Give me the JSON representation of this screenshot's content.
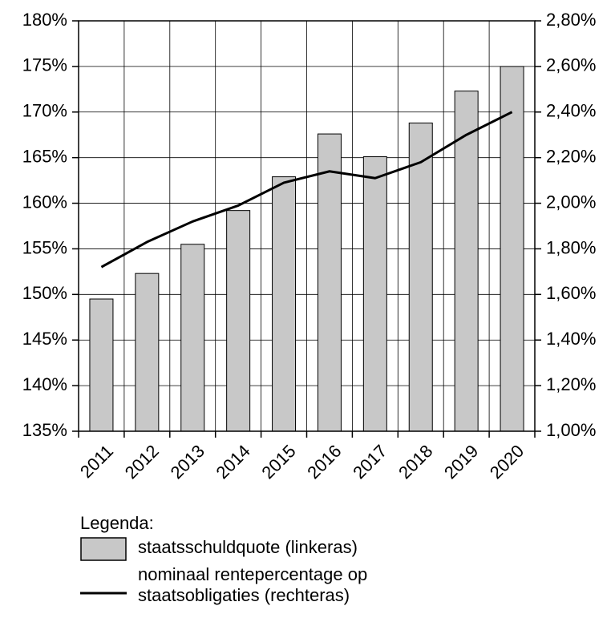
{
  "chart_data": {
    "type": "bar",
    "categories": [
      "2011",
      "2012",
      "2013",
      "2014",
      "2015",
      "2016",
      "2017",
      "2018",
      "2019",
      "2020"
    ],
    "series": [
      {
        "name": "staatsschuldquote (linkeras)",
        "type": "bar",
        "color": "#c8c8c8",
        "values": [
          149.5,
          152.3,
          155.5,
          159.2,
          162.9,
          167.6,
          165.1,
          168.8,
          172.3,
          175.0
        ]
      },
      {
        "name": "nominaal rentepercentage op staatsobligaties (rechteras)",
        "type": "line",
        "axis": "y2",
        "color": "#000000",
        "values": [
          1.72,
          1.83,
          1.92,
          1.99,
          2.09,
          2.14,
          2.11,
          2.18,
          2.3,
          2.4
        ]
      }
    ],
    "ylim": [
      135,
      180
    ],
    "yticks": [
      {
        "value": 135,
        "label": "135%"
      },
      {
        "value": 140,
        "label": "140%"
      },
      {
        "value": 145,
        "label": "145%"
      },
      {
        "value": 150,
        "label": "150%"
      },
      {
        "value": 155,
        "label": "155%"
      },
      {
        "value": 160,
        "label": "160%"
      },
      {
        "value": 165,
        "label": "165%"
      },
      {
        "value": 170,
        "label": "170%"
      },
      {
        "value": 175,
        "label": "175%"
      },
      {
        "value": 180,
        "label": "180%"
      }
    ],
    "y2lim": [
      1.0,
      2.8
    ],
    "y2ticks": [
      {
        "value": 1.0,
        "label": "1,00%"
      },
      {
        "value": 1.2,
        "label": "1,20%"
      },
      {
        "value": 1.4,
        "label": "1,40%"
      },
      {
        "value": 1.6,
        "label": "1,60%"
      },
      {
        "value": 1.8,
        "label": "1,80%"
      },
      {
        "value": 2.0,
        "label": "2,00%"
      },
      {
        "value": 2.2,
        "label": "2,20%"
      },
      {
        "value": 2.4,
        "label": "2,40%"
      },
      {
        "value": 2.6,
        "label": "2,60%"
      },
      {
        "value": 2.8,
        "label": "2,80%"
      }
    ],
    "grid": true,
    "legend_title": "Legenda:"
  }
}
